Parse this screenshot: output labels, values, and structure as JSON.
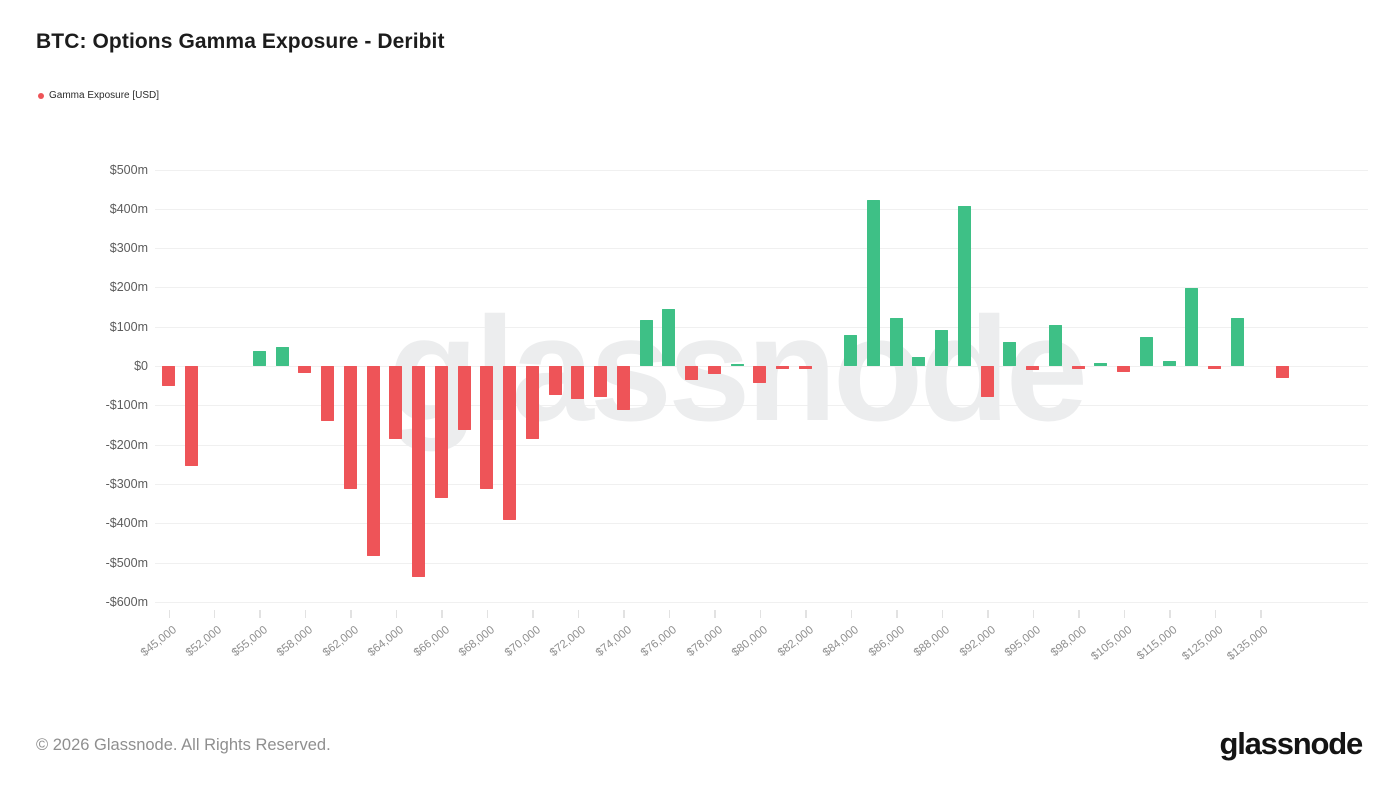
{
  "title": "BTC: Options Gamma Exposure - Deribit",
  "legend": {
    "label": "Gamma Exposure [USD]",
    "color": "#ee5458"
  },
  "watermark": "glassnode",
  "footer": {
    "copyright": "© 2026 Glassnode. All Rights Reserved.",
    "logo": "glassnode"
  },
  "chart_data": {
    "type": "bar",
    "title": "BTC: Options Gamma Exposure - Deribit",
    "series_name": "Gamma Exposure [USD]",
    "unit": "USD millions",
    "ylabel": "",
    "xlabel": "",
    "ylim": [
      -600,
      500
    ],
    "ytick_step": 100,
    "grid": true,
    "legend_position": "top-left",
    "ytick_labels": [
      "$500m",
      "$400m",
      "$300m",
      "$200m",
      "$100m",
      "$0",
      "-$100m",
      "-$200m",
      "-$300m",
      "-$400m",
      "-$500m",
      "-$600m"
    ],
    "x_tick_labels": [
      "$45,000",
      "$52,000",
      "$55,000",
      "$58,000",
      "$62,000",
      "$64,000",
      "$66,000",
      "$68,000",
      "$70,000",
      "$72,000",
      "$74,000",
      "$76,000",
      "$78,000",
      "$80,000",
      "$82,000",
      "$84,000",
      "$86,000",
      "$88,000",
      "$92,000",
      "$95,000",
      "$98,000",
      "$105,000",
      "$115,000",
      "$125,000",
      "$135,000"
    ],
    "colors": {
      "positive": "#3ec086",
      "negative": "#ee5458"
    },
    "bars": [
      {
        "label": "$45,000",
        "value": -50
      },
      {
        "label": "",
        "value": -255
      },
      {
        "label": "$52,000",
        "value": 0
      },
      {
        "label": "",
        "value": 0
      },
      {
        "label": "$55,000",
        "value": 38
      },
      {
        "label": "",
        "value": 48
      },
      {
        "label": "$58,000",
        "value": -18
      },
      {
        "label": "",
        "value": -140
      },
      {
        "label": "$62,000",
        "value": -313
      },
      {
        "label": "",
        "value": -483
      },
      {
        "label": "$64,000",
        "value": -186
      },
      {
        "label": "",
        "value": -537
      },
      {
        "label": "$66,000",
        "value": -336
      },
      {
        "label": "",
        "value": -163
      },
      {
        "label": "$68,000",
        "value": -313
      },
      {
        "label": "",
        "value": -392
      },
      {
        "label": "$70,000",
        "value": -187
      },
      {
        "label": "",
        "value": -73
      },
      {
        "label": "$72,000",
        "value": -85
      },
      {
        "label": "",
        "value": -80
      },
      {
        "label": "$74,000",
        "value": -112
      },
      {
        "label": "",
        "value": 118
      },
      {
        "label": "$76,000",
        "value": 145
      },
      {
        "label": "",
        "value": -35
      },
      {
        "label": "$78,000",
        "value": -20
      },
      {
        "label": "",
        "value": 5
      },
      {
        "label": "$80,000",
        "value": -42
      },
      {
        "label": "",
        "value": -8
      },
      {
        "label": "$82,000",
        "value": -8
      },
      {
        "label": "",
        "value": 0
      },
      {
        "label": "$84,000",
        "value": 78
      },
      {
        "label": "",
        "value": 422
      },
      {
        "label": "$86,000",
        "value": 122
      },
      {
        "label": "",
        "value": 24
      },
      {
        "label": "$88,000",
        "value": 92
      },
      {
        "label": "",
        "value": 408
      },
      {
        "label": "$92,000",
        "value": -80
      },
      {
        "label": "",
        "value": 62
      },
      {
        "label": "$95,000",
        "value": -10
      },
      {
        "label": "",
        "value": 104
      },
      {
        "label": "$98,000",
        "value": -8
      },
      {
        "label": "",
        "value": 8
      },
      {
        "label": "$105,000",
        "value": -15
      },
      {
        "label": "",
        "value": 74
      },
      {
        "label": "$115,000",
        "value": 12
      },
      {
        "label": "",
        "value": 198
      },
      {
        "label": "$125,000",
        "value": -8
      },
      {
        "label": "",
        "value": 122
      },
      {
        "label": "$135,000",
        "value": 0
      },
      {
        "label": "",
        "value": -30
      }
    ]
  }
}
